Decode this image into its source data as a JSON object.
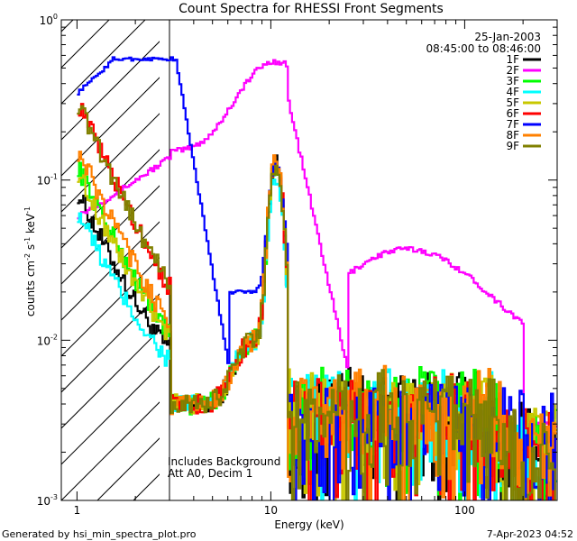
{
  "chart_data": {
    "type": "line",
    "title": "Count Spectra for RHESSI Front Segments",
    "xlabel": "Energy (keV)",
    "ylabel_main": "counts cm",
    "ylabel_exp1": "-2",
    "ylabel_mid": " s",
    "ylabel_exp2": "-1",
    "ylabel_end": " keV",
    "ylabel_exp3": "-1",
    "xscale": "log",
    "yscale": "log",
    "xlim": [
      0.83,
      300
    ],
    "ylim": [
      0.001,
      1
    ],
    "xticks": [
      {
        "value": 1,
        "label": "1"
      },
      {
        "value": 10,
        "label": "10"
      },
      {
        "value": 100,
        "label": "100"
      }
    ],
    "yticks": [
      {
        "value": 1,
        "base": "10",
        "exp": "0"
      },
      {
        "value": 0.1,
        "base": "10",
        "exp": "-1"
      },
      {
        "value": 0.01,
        "base": "10",
        "exp": "-2"
      },
      {
        "value": 0.001,
        "base": "10",
        "exp": "-3"
      }
    ],
    "attenuator_edge_keV": 3,
    "date": "25-Jan-2003",
    "time_range": "08:45:00 to 08:46:00",
    "annotation_line1": "Includes Background",
    "annotation_line2": "Att A0, Decim 1",
    "footer_left": "Generated by hsi_min_spectra_plot.pro",
    "footer_right": "7-Apr-2023 04:52",
    "legend_position": "top-right",
    "series": [
      {
        "name": "1F",
        "color": "#000000",
        "peak": 0.12,
        "low": 0.08,
        "noise": 0.003
      },
      {
        "name": "2F",
        "color": "#ff00ff",
        "peak": 0.55,
        "low": 0.06,
        "noise": 0.004
      },
      {
        "name": "3F",
        "color": "#00ff00",
        "peak": 0.12,
        "low": 0.12,
        "noise": 0.003
      },
      {
        "name": "4F",
        "color": "#00ffff",
        "peak": 0.1,
        "low": 0.06,
        "noise": 0.003
      },
      {
        "name": "5F",
        "color": "#c8c800",
        "peak": 0.12,
        "low": 0.11,
        "noise": 0.003
      },
      {
        "name": "6F",
        "color": "#ff0000",
        "peak": 0.13,
        "low": 0.3,
        "noise": 0.003
      },
      {
        "name": "7F",
        "color": "#0000ff",
        "peak": 0.57,
        "low": 0.3,
        "noise": 0.003
      },
      {
        "name": "8F",
        "color": "#ff8000",
        "peak": 0.13,
        "low": 0.15,
        "noise": 0.003
      },
      {
        "name": "9F",
        "color": "#808000",
        "peak": 0.12,
        "low": 0.3,
        "noise": 0.003
      }
    ]
  }
}
